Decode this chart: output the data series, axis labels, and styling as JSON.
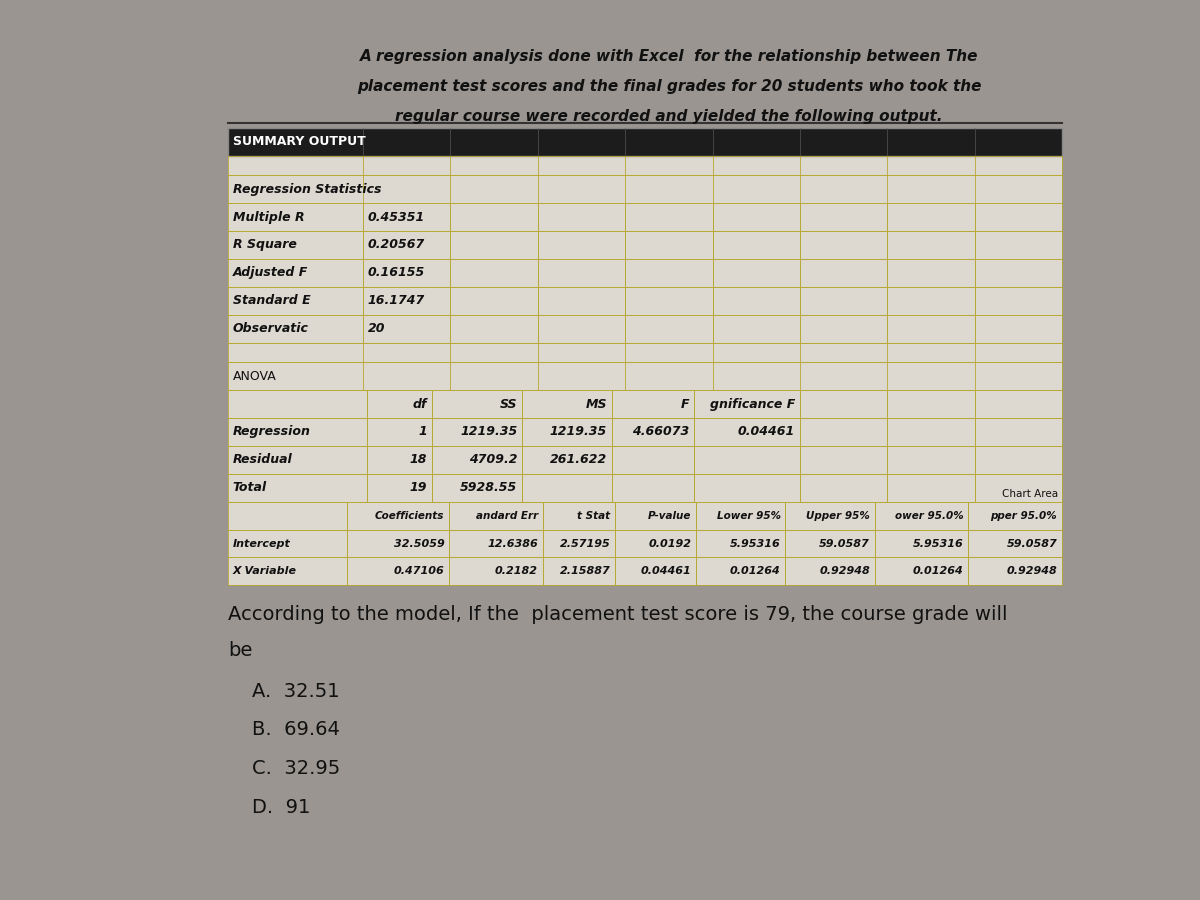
{
  "bg_color": "#9a9590",
  "paper_color": "#e8e4de",
  "table_bg": "#ddd8d0",
  "title_lines": [
    "A regression analysis done with Excel  for the relationship between The",
    "placement test scores and the final grades for 20 students who took the",
    "regular course were recorded and yielded the following output."
  ],
  "summary_output_label": "SUMMARY OUTPUT",
  "regression_statistics_label": "Regression Statistics",
  "reg_stats": [
    [
      "Multiple R",
      "0.45351"
    ],
    [
      "R Square",
      "0.20567"
    ],
    [
      "Adjusted F",
      "0.16155"
    ],
    [
      "Standard E",
      "16.1747"
    ],
    [
      "Observatic",
      "20"
    ]
  ],
  "anova_label": "ANOVA",
  "anova_headers": [
    "",
    "df",
    "SS",
    "MS",
    "F",
    "gnificance F"
  ],
  "anova_rows": [
    [
      "Regression",
      "1",
      "1219.35",
      "1219.35",
      "4.66073",
      "0.04461"
    ],
    [
      "Residual",
      "18",
      "4709.2",
      "261.622",
      "",
      ""
    ],
    [
      "Total",
      "19",
      "5928.55",
      "",
      "",
      ""
    ]
  ],
  "chart_area_label": "Chart Area",
  "coeff_headers": [
    "",
    "Coefficients",
    "andard Err",
    "t Stat",
    "P-value",
    "Lower 95%",
    "Upper 95%",
    "ower 95.0%",
    "pper 95.0%"
  ],
  "coeff_rows": [
    [
      "Intercept",
      "32.5059",
      "12.6386",
      "2.57195",
      "0.0192",
      "5.95316",
      "59.0587",
      "5.95316",
      "59.0587"
    ],
    [
      "X Variable",
      "0.47106",
      "0.2182",
      "2.15887",
      "0.04461",
      "0.01264",
      "0.92948",
      "0.01264",
      "0.92948"
    ]
  ],
  "question_line1": "According to the model, If the  placement test score is 79, the course grade will",
  "question_line2": "be",
  "choices": [
    "A.  32.51",
    "B.  69.64",
    "C.  32.95",
    "D.  91"
  ],
  "grid_color": "#b8a830",
  "header_bg": "#1c1c1c",
  "header_text": "#ffffff",
  "cell_text": "#111111",
  "title_fontsize": 11.0,
  "table_fontsize": 9.0,
  "question_fontsize": 14.0,
  "choice_fontsize": 14.0
}
